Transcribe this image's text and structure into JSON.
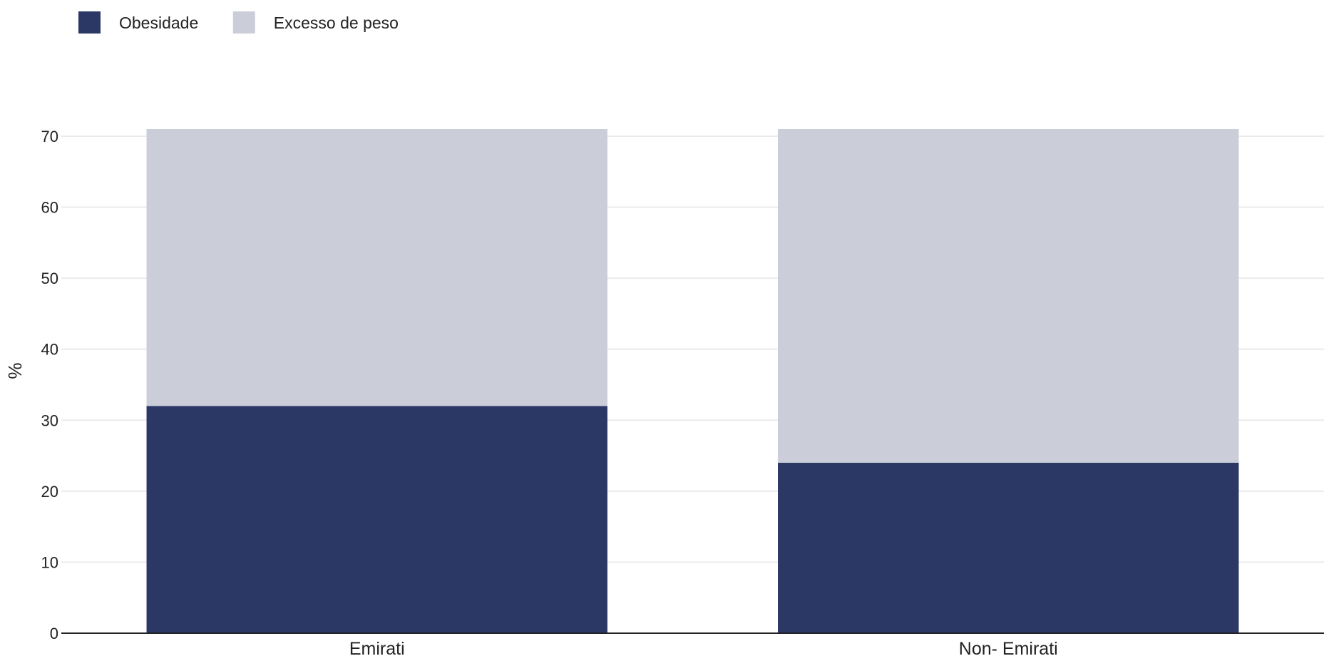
{
  "chart_data": {
    "type": "bar",
    "stacked": true,
    "categories": [
      "Emirati",
      "Non- Emirati"
    ],
    "series": [
      {
        "name": "Obesidade",
        "values": [
          32,
          24
        ],
        "color": "#2b3764"
      },
      {
        "name": "Excesso de peso",
        "values": [
          39,
          47
        ],
        "color": "#cbcdd9"
      }
    ],
    "title": "",
    "xlabel": "",
    "ylabel": "%",
    "ylim": [
      0,
      71
    ],
    "yticks": [
      0,
      10,
      20,
      30,
      40,
      50,
      60,
      70
    ],
    "grid": true,
    "legend": "top-left"
  },
  "colors": {
    "grid": "#ebebeb",
    "axis": "#222222"
  }
}
